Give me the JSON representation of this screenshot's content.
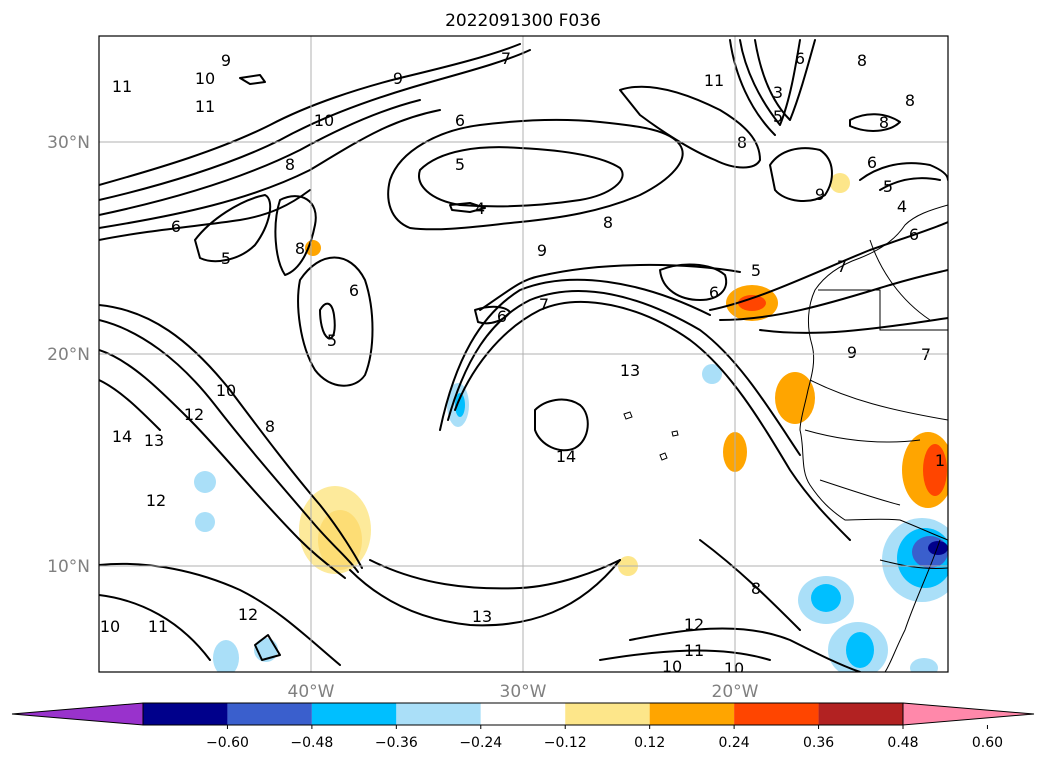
{
  "title": "2022091300 F036",
  "lat_labels": [
    "30°N",
    "20°N",
    "10°N"
  ],
  "lon_labels": [
    "40°W",
    "30°W",
    "20°W"
  ],
  "colorbar": {
    "ticks": [
      "−0.60",
      "−0.48",
      "−0.36",
      "−0.24",
      "−0.12",
      "0.12",
      "0.24",
      "0.36",
      "0.48",
      "0.60"
    ],
    "colors": [
      "#9932cc",
      "#00008b",
      "#3a5fcd",
      "#00bfff",
      "#aadff8",
      "#ffffff",
      "#fde68a",
      "#ffa500",
      "#ff4500",
      "#b22222",
      "#ff88aa"
    ]
  },
  "contour_labels": [
    "9",
    "10",
    "11",
    "11",
    "10",
    "8",
    "9",
    "7",
    "6",
    "5",
    "4",
    "8",
    "9",
    "7",
    "6",
    "6",
    "5",
    "6",
    "8",
    "5",
    "6",
    "5",
    "10",
    "12",
    "14",
    "13",
    "12",
    "8",
    "13",
    "14",
    "10",
    "11",
    "12",
    "13",
    "12",
    "11",
    "10",
    "10",
    "11",
    "8",
    "3",
    "5",
    "6",
    "8",
    "8",
    "9",
    "8",
    "6",
    "5",
    "4",
    "6",
    "7",
    "9",
    "7",
    "8",
    "1"
  ]
}
